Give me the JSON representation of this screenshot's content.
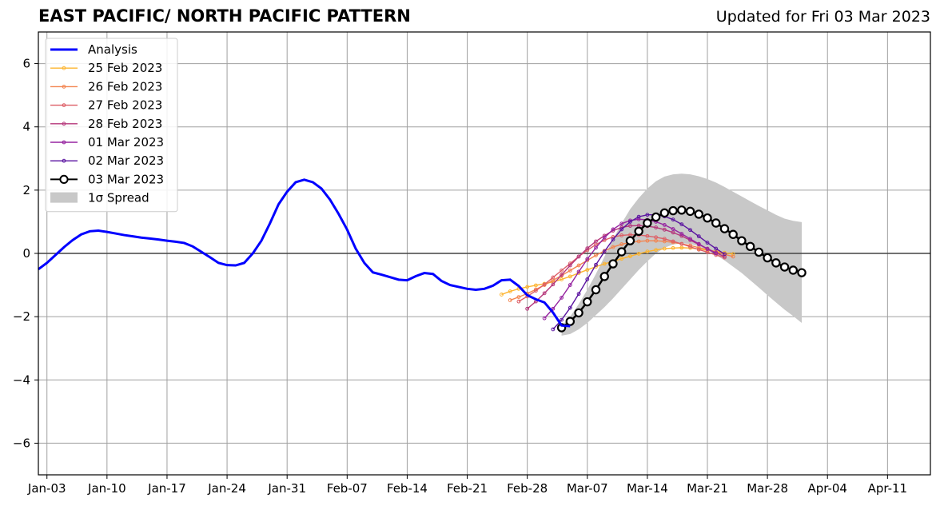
{
  "chart_data": {
    "type": "line",
    "title": "EAST PACIFIC/ NORTH PACIFIC PATTERN",
    "subtitle": "Updated for Fri 03 Mar 2023",
    "xlabel": "",
    "ylabel": "",
    "ylim": [
      -7,
      7
    ],
    "xlim": [
      "2023-01-02",
      "2023-04-16"
    ],
    "grid": true,
    "legend_position": "top-left",
    "x_ticks": [
      "Jan-03",
      "Jan-10",
      "Jan-17",
      "Jan-24",
      "Jan-31",
      "Feb-07",
      "Feb-14",
      "Feb-21",
      "Feb-28",
      "Mar-07",
      "Mar-14",
      "Mar-21",
      "Mar-28",
      "Apr-04",
      "Apr-11"
    ],
    "x_tick_dates": [
      "2023-01-03",
      "2023-01-10",
      "2023-01-17",
      "2023-01-24",
      "2023-01-31",
      "2023-02-07",
      "2023-02-14",
      "2023-02-21",
      "2023-02-28",
      "2023-03-07",
      "2023-03-14",
      "2023-03-21",
      "2023-03-28",
      "2023-04-04",
      "2023-04-11"
    ],
    "y_ticks": [
      "−6",
      "−4",
      "−2",
      "0",
      "2",
      "4",
      "6"
    ],
    "y_tick_values": [
      -6,
      -4,
      -2,
      0,
      2,
      4,
      6
    ],
    "analysis": {
      "name": "Analysis",
      "color": "#0000ff",
      "start_date": "2023-01-02",
      "values": [
        -0.5,
        -0.3,
        -0.05,
        0.2,
        0.42,
        0.6,
        0.7,
        0.72,
        0.68,
        0.63,
        0.58,
        0.54,
        0.5,
        0.47,
        0.44,
        0.4,
        0.37,
        0.33,
        0.22,
        0.05,
        -0.12,
        -0.3,
        -0.37,
        -0.38,
        -0.3,
        0.0,
        0.4,
        0.95,
        1.55,
        1.95,
        2.25,
        2.33,
        2.25,
        2.05,
        1.7,
        1.25,
        0.75,
        0.15,
        -0.3,
        -0.6,
        -0.67,
        -0.75,
        -0.83,
        -0.85,
        -0.72,
        -0.62,
        -0.65,
        -0.87,
        -1.0,
        -1.06,
        -1.12,
        -1.15,
        -1.12,
        -1.02,
        -0.85,
        -0.83,
        -1.03,
        -1.32,
        -1.45,
        -1.55,
        -1.87,
        -2.28,
        -2.3
      ]
    },
    "forecasts": [
      {
        "name": "25 Feb 2023",
        "color": "#fdb42f",
        "start_date": "2023-02-25",
        "values": [
          -1.3,
          -1.2,
          -1.12,
          -1.06,
          -1.01,
          -0.96,
          -0.9,
          -0.82,
          -0.73,
          -0.62,
          -0.52,
          -0.42,
          -0.33,
          -0.25,
          -0.17,
          -0.09,
          -0.01,
          0.06,
          0.11,
          0.15,
          0.17,
          0.18,
          0.17,
          0.14,
          0.1,
          0.06,
          0.02,
          -0.02
        ]
      },
      {
        "name": "26 Feb 2023",
        "color": "#f3844f",
        "start_date": "2023-02-26",
        "values": [
          -1.48,
          -1.38,
          -1.27,
          -1.14,
          -1.0,
          -0.85,
          -0.7,
          -0.54,
          -0.38,
          -0.22,
          -0.06,
          0.08,
          0.2,
          0.29,
          0.35,
          0.38,
          0.4,
          0.4,
          0.38,
          0.35,
          0.3,
          0.25,
          0.18,
          0.12,
          0.05,
          -0.03,
          -0.1
        ]
      },
      {
        "name": "27 Feb 2023",
        "color": "#dd5e66",
        "start_date": "2023-02-27",
        "values": [
          -1.52,
          -1.36,
          -1.18,
          -0.98,
          -0.76,
          -0.54,
          -0.32,
          -0.1,
          0.1,
          0.28,
          0.42,
          0.52,
          0.57,
          0.59,
          0.58,
          0.55,
          0.51,
          0.46,
          0.38,
          0.3,
          0.21,
          0.12,
          0.04,
          -0.05,
          -0.13
        ]
      },
      {
        "name": "28 Feb 2023",
        "color": "#b5367a",
        "start_date": "2023-02-28",
        "values": [
          -1.75,
          -1.52,
          -1.26,
          -0.98,
          -0.68,
          -0.38,
          -0.1,
          0.16,
          0.38,
          0.56,
          0.72,
          0.82,
          0.87,
          0.88,
          0.86,
          0.82,
          0.75,
          0.66,
          0.55,
          0.42,
          0.28,
          0.15,
          0.02,
          -0.1
        ]
      },
      {
        "name": "01 Mar 2023",
        "color": "#9624a0",
        "start_date": "2023-03-02",
        "values": [
          -2.05,
          -1.75,
          -1.4,
          -1.0,
          -0.58,
          -0.18,
          0.18,
          0.5,
          0.76,
          0.94,
          1.04,
          1.08,
          1.06,
          1.0,
          0.9,
          0.77,
          0.62,
          0.46,
          0.3,
          0.14,
          0.0
        ]
      },
      {
        "name": "02 Mar 2023",
        "color": "#5a13a0",
        "start_date": "2023-03-03",
        "values": [
          -2.4,
          -2.1,
          -1.72,
          -1.28,
          -0.82,
          -0.36,
          0.06,
          0.44,
          0.76,
          1.0,
          1.16,
          1.22,
          1.22,
          1.17,
          1.07,
          0.92,
          0.74,
          0.54,
          0.34,
          0.15,
          -0.02
        ]
      },
      {
        "name": "03 Mar 2023",
        "color": "#000000",
        "start_date": "2023-03-04",
        "values": [
          -2.35,
          -2.15,
          -1.88,
          -1.53,
          -1.15,
          -0.73,
          -0.33,
          0.05,
          0.4,
          0.7,
          0.96,
          1.15,
          1.28,
          1.35,
          1.37,
          1.33,
          1.24,
          1.12,
          0.96,
          0.78,
          0.6,
          0.4,
          0.22,
          0.04,
          -0.14,
          -0.3,
          -0.43,
          -0.53,
          -0.61
        ]
      }
    ],
    "spread": {
      "name": "1σ Spread",
      "color": "#c8c8c8",
      "start_date": "2023-03-04",
      "upper": [
        -2.3,
        -2.0,
        -1.6,
        -1.15,
        -0.65,
        -0.1,
        0.45,
        0.95,
        1.4,
        1.75,
        2.05,
        2.28,
        2.43,
        2.5,
        2.52,
        2.5,
        2.44,
        2.35,
        2.24,
        2.1,
        1.95,
        1.8,
        1.65,
        1.5,
        1.36,
        1.22,
        1.1,
        1.03,
        0.99
      ],
      "lower": [
        -2.6,
        -2.55,
        -2.4,
        -2.2,
        -1.95,
        -1.7,
        -1.42,
        -1.12,
        -0.82,
        -0.52,
        -0.25,
        0.0,
        0.18,
        0.28,
        0.32,
        0.3,
        0.22,
        0.1,
        -0.05,
        -0.22,
        -0.42,
        -0.62,
        -0.85,
        -1.08,
        -1.32,
        -1.55,
        -1.78,
        -1.98,
        -2.2
      ]
    }
  }
}
